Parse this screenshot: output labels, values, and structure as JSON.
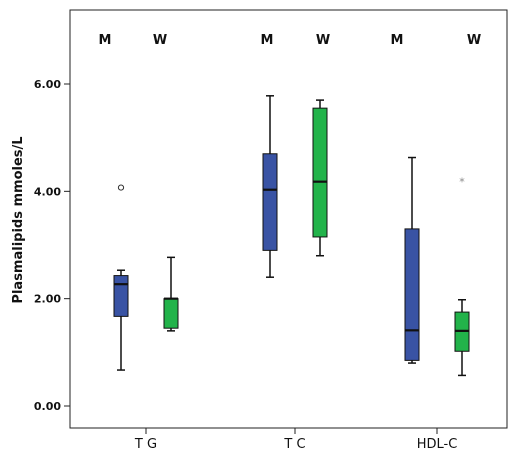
{
  "chart_data": {
    "type": "box",
    "ylabel": "Plasmalipids mmoles/L",
    "ylim": [
      -0.1,
      7.25
    ],
    "yticks": [
      0,
      2,
      4,
      6
    ],
    "ytick_labels": [
      "0.00",
      "2.00",
      "4.00",
      "6.00"
    ],
    "categories": [
      "T G",
      "T C",
      "HDL-C"
    ],
    "series": [
      {
        "name": "M",
        "color": "#3953a4"
      },
      {
        "name": "W",
        "color": "#22b34a"
      }
    ],
    "boxes": [
      {
        "category": "T G",
        "group": "M",
        "min": 0.67,
        "q1": 1.67,
        "median": 2.27,
        "q3": 2.43,
        "max": 2.53,
        "outliers": [
          {
            "value": 4.07,
            "symbol": "o"
          }
        ]
      },
      {
        "category": "T G",
        "group": "W",
        "min": 1.4,
        "q1": 1.45,
        "median": 2.0,
        "q3": 2.0,
        "max": 2.77,
        "outliers": []
      },
      {
        "category": "T C",
        "group": "M",
        "min": 2.4,
        "q1": 2.9,
        "median": 4.03,
        "q3": 4.7,
        "max": 5.78,
        "outliers": []
      },
      {
        "category": "T C",
        "group": "W",
        "min": 2.8,
        "q1": 3.15,
        "median": 4.18,
        "q3": 5.55,
        "max": 5.7,
        "outliers": []
      },
      {
        "category": "HDL-C",
        "group": "M",
        "min": 0.8,
        "q1": 0.85,
        "median": 1.41,
        "q3": 3.3,
        "max": 4.63,
        "outliers": []
      },
      {
        "category": "HDL-C",
        "group": "W",
        "min": 0.57,
        "q1": 1.02,
        "median": 1.4,
        "q3": 1.75,
        "max": 1.98,
        "outliers": [
          {
            "value": 4.2,
            "symbol": "*"
          }
        ]
      }
    ],
    "group_labels": [
      {
        "category": "T G",
        "labels": [
          "M",
          "W"
        ]
      },
      {
        "category": "T C",
        "labels": [
          "M",
          "W"
        ]
      },
      {
        "category": "HDL-C",
        "labels": [
          "M",
          "W"
        ]
      }
    ],
    "grid": false
  }
}
